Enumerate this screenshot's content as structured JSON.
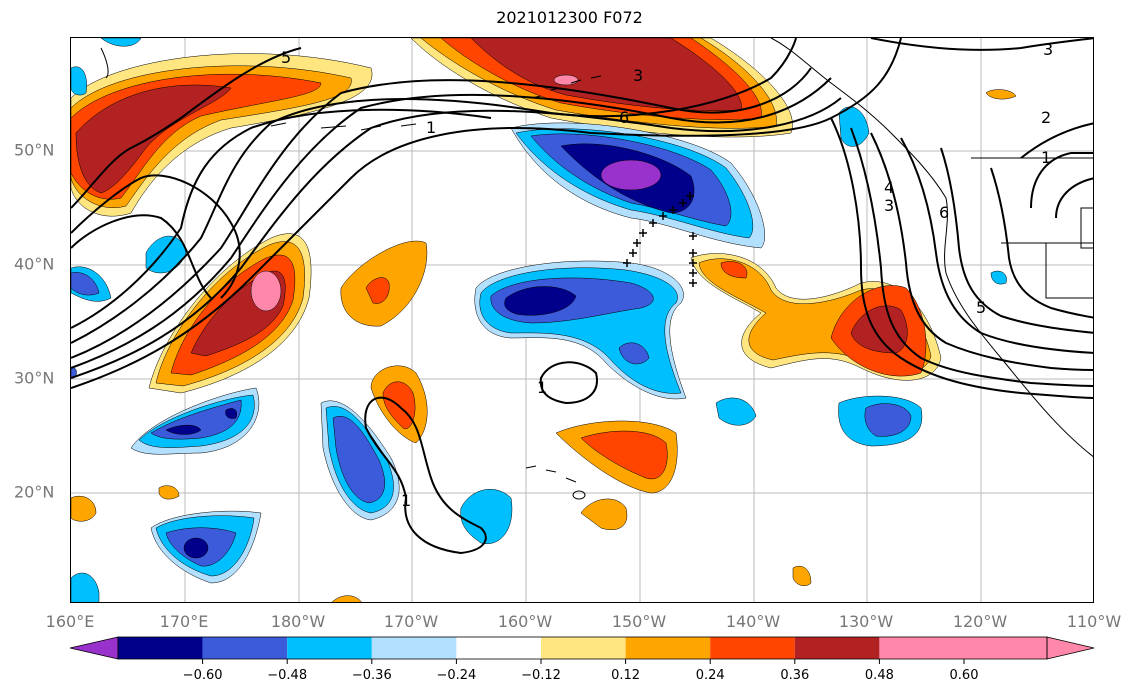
{
  "title": "2021012300 F072",
  "x_ticks": [
    "160°E",
    "170°E",
    "180°W",
    "170°W",
    "160°W",
    "150°W",
    "140°W",
    "130°W",
    "120°W",
    "110°W"
  ],
  "y_ticks": [
    "50°N",
    "40°N",
    "30°N",
    "20°N"
  ],
  "contour_labels": [
    "5",
    "3",
    "6",
    "1",
    "4",
    "3",
    "6",
    "3",
    "2",
    "1",
    "5",
    "1",
    "1"
  ],
  "colorbar": {
    "ticks": [
      "−0.60",
      "−0.48",
      "−0.36",
      "−0.24",
      "−0.12",
      "0.12",
      "0.24",
      "0.36",
      "0.48",
      "0.60"
    ],
    "colors": [
      "#9932cc",
      "#00008b",
      "#3b5bdb",
      "#00bfff",
      "#b3e0ff",
      "#ffffff",
      "#ffe680",
      "#ffa500",
      "#ff4500",
      "#b22222",
      "#ff88aa"
    ]
  }
}
